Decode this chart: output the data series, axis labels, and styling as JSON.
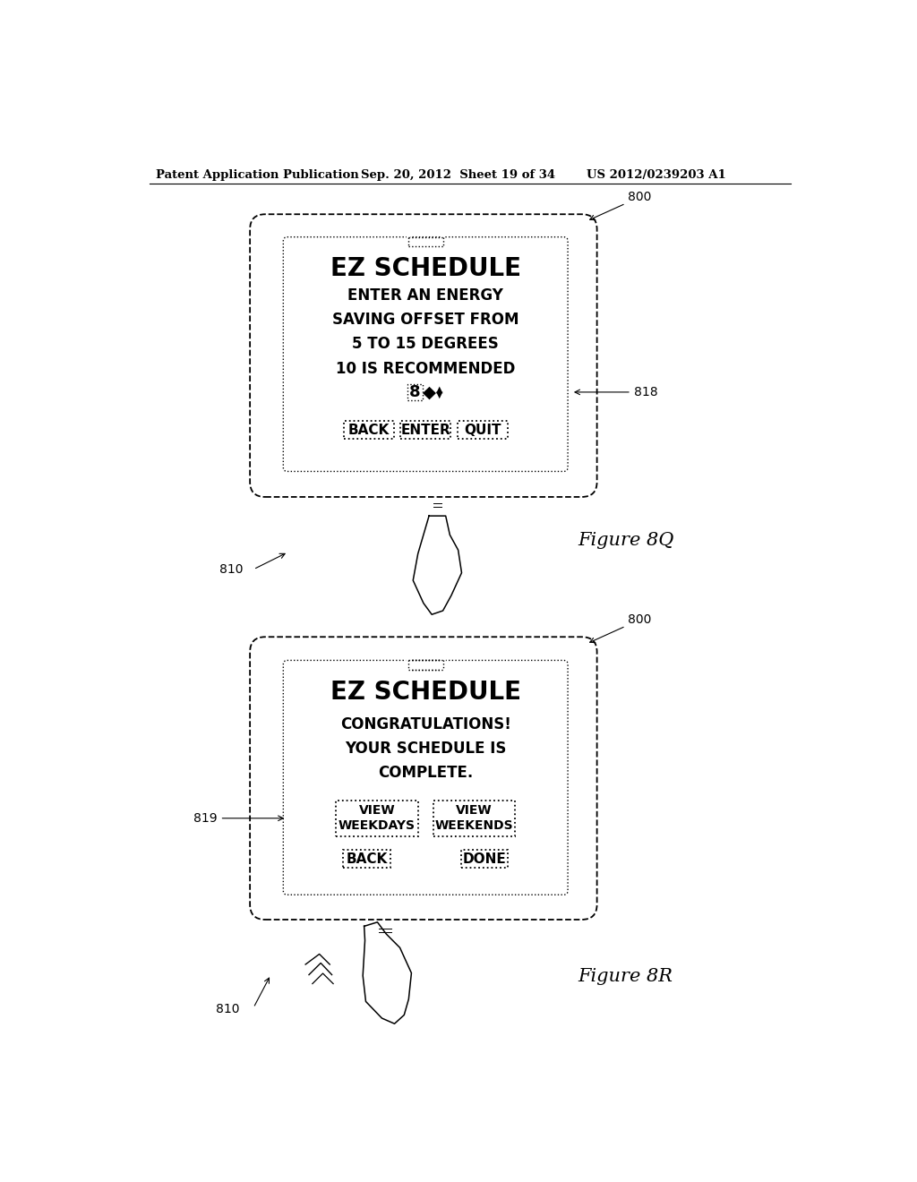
{
  "bg_color": "#ffffff",
  "header_left": "Patent Application Publication",
  "header_mid": "Sep. 20, 2012  Sheet 19 of 34",
  "header_right": "US 2012/0239203 A1",
  "fig1": {
    "label": "800",
    "screen_title": "EZ SCHEDULE",
    "screen_body": "ENTER AN ENERGY\nSAVING OFFSET FROM\n5 TO 15 DEGREES\n10 IS RECOMMENDED",
    "input_value": "8",
    "buttons": [
      "BACK",
      "ENTER",
      "QUIT"
    ],
    "ref_818": "818",
    "hand_label": "810",
    "figure_caption": "Figure 8Q"
  },
  "fig2": {
    "label": "800",
    "screen_title": "EZ SCHEDULE",
    "screen_body": "CONGRATULATIONS!\nYOUR SCHEDULE IS\nCOMPLETE.",
    "btn_view_weekdays": "VIEW\nWEEKDAYS",
    "btn_view_weekends": "VIEW\nWEEKENDS",
    "btn_back": "BACK",
    "btn_done": "DONE",
    "ref_819": "819",
    "hand_label": "810",
    "figure_caption": "Figure 8R"
  }
}
